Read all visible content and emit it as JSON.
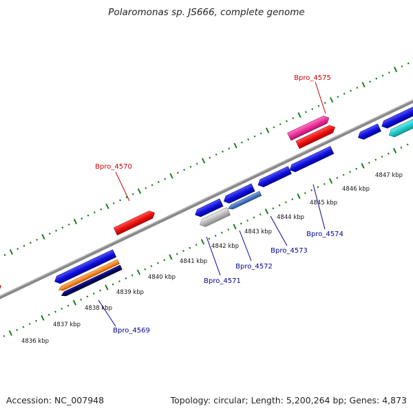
{
  "title": "Polaromonas sp. JS666, complete genome",
  "footer": {
    "accession": "Accession: NC_007948",
    "summary": "Topology: circular; Length: 5,200,264 bp; Genes: 4,873"
  },
  "kbp_labels": [
    "4836 kbp",
    "4837 kbp",
    "4838 kbp",
    "4839 kbp",
    "4840 kbp",
    "4841 kbp",
    "4842 kbp",
    "4843 kbp",
    "4844 kbp",
    "4845 kbp",
    "4846 kbp",
    "4847 kbp"
  ],
  "gene_labels": {
    "red": [
      "Bpro_4570",
      "Bpro_4575"
    ],
    "blue": [
      "Bpro_4569",
      "Bpro_4571",
      "Bpro_4572",
      "Bpro_4573",
      "Bpro_4574"
    ]
  },
  "colors": {
    "backbone": "#888888",
    "tick": "#1a7a1a",
    "red_label": "#cc0000",
    "blue_label": "#000099",
    "red_gene": "#ee1111",
    "pink_gene": "#ee3399",
    "blue_gene": "#1111dd",
    "cyan_gene": "#22cccc",
    "orange_gene": "#ff8822",
    "navy_gene": "#000066",
    "steel_gene": "#4477bb",
    "grey_gene": "#bbbbbb"
  }
}
